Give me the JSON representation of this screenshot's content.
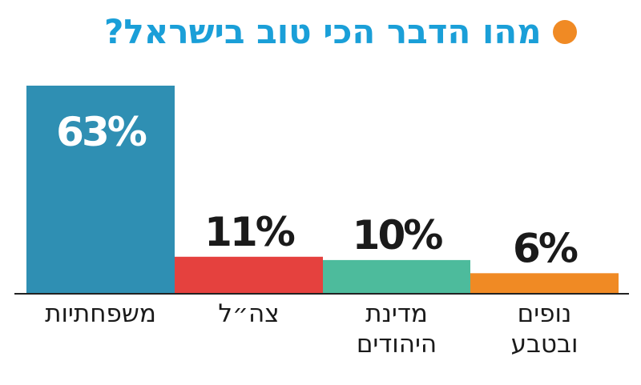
{
  "title": "מהו הדבר הכי טוב בישראל?",
  "colors": {
    "title": "#1a9fd8",
    "dot": "#f08a24",
    "baseline": "#222222",
    "value_text_light": "#ffffff",
    "value_text_dark": "#1a1a1a"
  },
  "chart_data": {
    "type": "bar",
    "title": "מהו הדבר הכי טוב בישראל?",
    "direction": "rtl",
    "unit": "%",
    "categories": [
      [
        "משפחתיות"
      ],
      [
        "צה״ל"
      ],
      [
        "מדינת",
        "היהודים"
      ],
      [
        "נופים",
        "ובטבע"
      ]
    ],
    "values": [
      63,
      11,
      10,
      6
    ],
    "value_labels": [
      "63%",
      "11%",
      "10%",
      "6%"
    ],
    "colors": [
      "#2f8fb3",
      "#e5413e",
      "#4dbb9c",
      "#f08a24"
    ],
    "ylim": [
      0,
      63
    ],
    "grid": false,
    "legend": false
  }
}
